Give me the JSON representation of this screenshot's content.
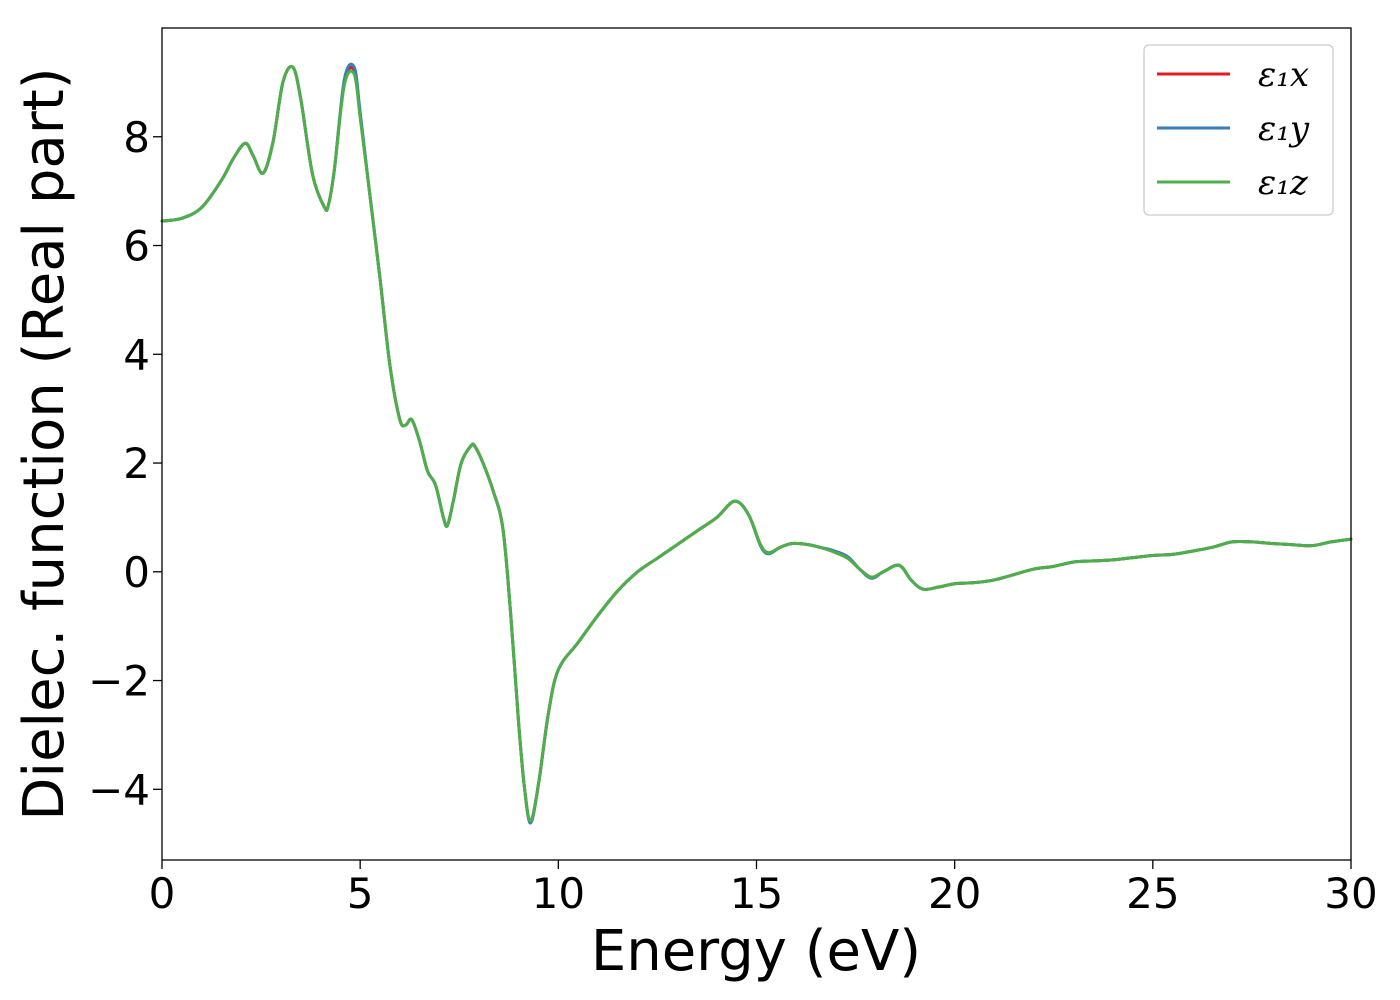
{
  "chart_data": {
    "type": "line",
    "title": "",
    "xlabel": "Energy (eV)",
    "ylabel": "Dielec. function (Real part)",
    "xlim": [
      0,
      30
    ],
    "ylim": [
      -5.3,
      10.0
    ],
    "xticks": [
      0,
      5,
      10,
      15,
      20,
      25,
      30
    ],
    "xtick_labels": [
      "0",
      "5",
      "10",
      "15",
      "20",
      "25",
      "30"
    ],
    "yticks": [
      -4,
      -2,
      0,
      2,
      4,
      6,
      8
    ],
    "ytick_labels": [
      "−4",
      "−2",
      "0",
      "2",
      "4",
      "6",
      "8"
    ],
    "grid": false,
    "legend_position": "top-right",
    "x": [
      0,
      0.5,
      1.0,
      1.5,
      1.8,
      2.1,
      2.3,
      2.55,
      2.8,
      3.05,
      3.3,
      3.5,
      3.8,
      4.1,
      4.2,
      4.35,
      4.6,
      4.85,
      5.0,
      5.2,
      5.5,
      5.75,
      6.0,
      6.15,
      6.3,
      6.5,
      6.7,
      6.9,
      7.1,
      7.2,
      7.35,
      7.55,
      7.8,
      7.9,
      8.1,
      8.35,
      8.6,
      8.8,
      9.0,
      9.15,
      9.3,
      9.5,
      9.75,
      10.0,
      10.5,
      11.0,
      11.5,
      12.0,
      12.5,
      13.0,
      13.5,
      14.0,
      14.45,
      14.8,
      15.1,
      15.3,
      15.6,
      15.9,
      16.3,
      16.6,
      16.9,
      17.3,
      17.6,
      17.9,
      18.2,
      18.6,
      18.9,
      19.2,
      19.6,
      20.0,
      20.5,
      21.0,
      21.5,
      22.0,
      22.5,
      23.0,
      23.5,
      24.0,
      24.5,
      25.0,
      25.5,
      26.0,
      26.5,
      27.0,
      27.5,
      28.0,
      28.5,
      29.0,
      29.5,
      30.0
    ],
    "series": [
      {
        "name": "ε₁x",
        "color": "#e41a1c",
        "values": [
          6.45,
          6.5,
          6.7,
          7.2,
          7.6,
          7.88,
          7.65,
          7.33,
          7.9,
          9.0,
          9.28,
          8.7,
          7.3,
          6.7,
          6.75,
          7.4,
          9.0,
          9.22,
          8.4,
          7.2,
          5.4,
          3.8,
          2.8,
          2.7,
          2.8,
          2.4,
          1.85,
          1.6,
          1.0,
          0.85,
          1.3,
          2.0,
          2.32,
          2.3,
          2.0,
          1.5,
          0.8,
          -0.8,
          -2.8,
          -4.0,
          -4.6,
          -3.9,
          -2.6,
          -1.8,
          -1.3,
          -0.8,
          -0.35,
          0.0,
          0.25,
          0.5,
          0.75,
          1.0,
          1.3,
          1.05,
          0.5,
          0.35,
          0.45,
          0.52,
          0.5,
          0.45,
          0.38,
          0.25,
          0.05,
          -0.1,
          0.0,
          0.12,
          -0.15,
          -0.32,
          -0.28,
          -0.22,
          -0.2,
          -0.15,
          -0.05,
          0.05,
          0.1,
          0.18,
          0.2,
          0.22,
          0.26,
          0.3,
          0.32,
          0.38,
          0.45,
          0.55,
          0.55,
          0.52,
          0.5,
          0.48,
          0.55,
          0.6
        ]
      },
      {
        "name": "ε₁y",
        "color": "#377eb8",
        "values": [
          6.45,
          6.5,
          6.7,
          7.2,
          7.6,
          7.88,
          7.65,
          7.33,
          7.9,
          9.0,
          9.28,
          8.7,
          7.3,
          6.7,
          6.75,
          7.4,
          9.05,
          9.28,
          8.45,
          7.2,
          5.4,
          3.8,
          2.8,
          2.7,
          2.8,
          2.4,
          1.85,
          1.6,
          1.0,
          0.85,
          1.3,
          2.0,
          2.32,
          2.3,
          2.0,
          1.5,
          0.8,
          -0.8,
          -2.8,
          -4.0,
          -4.62,
          -3.9,
          -2.6,
          -1.8,
          -1.3,
          -0.8,
          -0.35,
          0.0,
          0.25,
          0.5,
          0.75,
          1.0,
          1.3,
          1.05,
          0.48,
          0.33,
          0.45,
          0.52,
          0.5,
          0.45,
          0.4,
          0.28,
          0.05,
          -0.12,
          0.0,
          0.12,
          -0.15,
          -0.32,
          -0.28,
          -0.22,
          -0.2,
          -0.15,
          -0.05,
          0.05,
          0.1,
          0.18,
          0.2,
          0.22,
          0.26,
          0.3,
          0.32,
          0.38,
          0.45,
          0.55,
          0.55,
          0.52,
          0.5,
          0.48,
          0.55,
          0.6
        ]
      },
      {
        "name": "ε₁z",
        "color": "#4daf4a",
        "values": [
          6.45,
          6.5,
          6.7,
          7.2,
          7.6,
          7.88,
          7.65,
          7.33,
          7.9,
          9.0,
          9.28,
          8.7,
          7.3,
          6.7,
          6.75,
          7.4,
          8.95,
          9.15,
          8.35,
          7.2,
          5.4,
          3.8,
          2.8,
          2.7,
          2.8,
          2.4,
          1.85,
          1.6,
          1.0,
          0.85,
          1.3,
          2.0,
          2.32,
          2.3,
          2.0,
          1.5,
          0.8,
          -0.8,
          -2.8,
          -4.0,
          -4.58,
          -3.9,
          -2.6,
          -1.8,
          -1.3,
          -0.8,
          -0.35,
          0.0,
          0.25,
          0.5,
          0.75,
          1.0,
          1.3,
          1.05,
          0.5,
          0.35,
          0.45,
          0.52,
          0.5,
          0.45,
          0.38,
          0.25,
          0.05,
          -0.1,
          0.0,
          0.12,
          -0.15,
          -0.32,
          -0.28,
          -0.22,
          -0.2,
          -0.15,
          -0.05,
          0.05,
          0.1,
          0.18,
          0.2,
          0.22,
          0.26,
          0.3,
          0.32,
          0.38,
          0.45,
          0.55,
          0.55,
          0.52,
          0.5,
          0.48,
          0.55,
          0.6
        ]
      }
    ]
  }
}
